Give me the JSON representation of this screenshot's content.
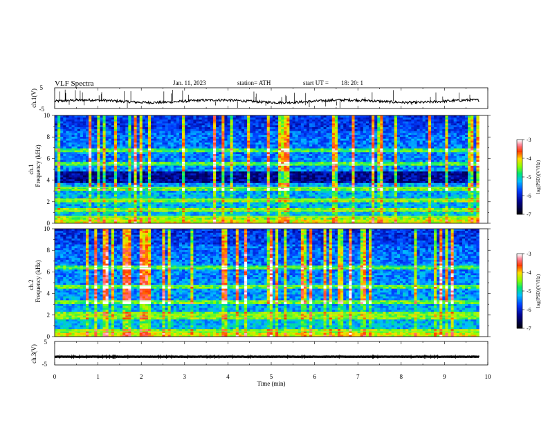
{
  "header": {
    "title": "VLF  Spectra",
    "date": "Jan.  11,  2023",
    "station": "station= ATH",
    "start_label": "start  UT  =",
    "start_time": "18: 20: 1"
  },
  "chart_data": [
    {
      "type": "line",
      "ylabel": "ch.1(V)",
      "ylim": [
        -5,
        5
      ],
      "yticks": [
        "5",
        "-5"
      ],
      "xlim": [
        0,
        10
      ],
      "description_values": {
        "baseline_level": -1.5,
        "trace_end_min": 9.8
      },
      "color": "#000000"
    },
    {
      "type": "heatmap",
      "ylabel": "ch.1\nFrequency  (kHz)",
      "ylim": [
        0,
        10
      ],
      "yticks": [
        "0",
        "2",
        "4",
        "6",
        "8",
        "10"
      ],
      "xlim": [
        0,
        10
      ],
      "data_end_min": 9.8,
      "colorbar": {
        "label": "log(PSD)(V²/Hz)",
        "range": [
          -7,
          -3
        ],
        "ticks": [
          "-3",
          "-4",
          "-5",
          "-6",
          "-7"
        ]
      },
      "bands_khz": [
        0.6,
        1.2,
        2.2,
        3.3,
        5.5,
        6.7
      ],
      "quiet_band_khz": [
        3.8,
        4.8
      ]
    },
    {
      "type": "heatmap",
      "ylabel": "ch.2\nFrequency  (kHz)",
      "ylim": [
        0,
        10
      ],
      "yticks": [
        "0",
        "2",
        "4",
        "6",
        "8",
        "10"
      ],
      "xlim": [
        0,
        10
      ],
      "data_end_min": 9.8,
      "colorbar": {
        "label": "log(PSD)(V²/Hz)",
        "range": [
          -7,
          -3
        ],
        "ticks": [
          "-3",
          "-4",
          "-5",
          "-6",
          "-7"
        ]
      },
      "bands_khz": [
        0.5,
        1.8,
        2.1,
        3.3,
        4.7,
        6.4
      ]
    },
    {
      "type": "line",
      "ylabel": "ch.3(V)",
      "ylim": [
        -5,
        5
      ],
      "yticks": [
        "5",
        "-5"
      ],
      "xlim": [
        0,
        10
      ],
      "xlabel": "Time  (min)",
      "xticks": [
        "0",
        "1",
        "2",
        "3",
        "4",
        "5",
        "6",
        "7",
        "8",
        "9",
        "10"
      ],
      "description_values": {
        "baseline_level": -1.5,
        "trace_end_min": 9.8
      },
      "color": "#000000"
    }
  ]
}
